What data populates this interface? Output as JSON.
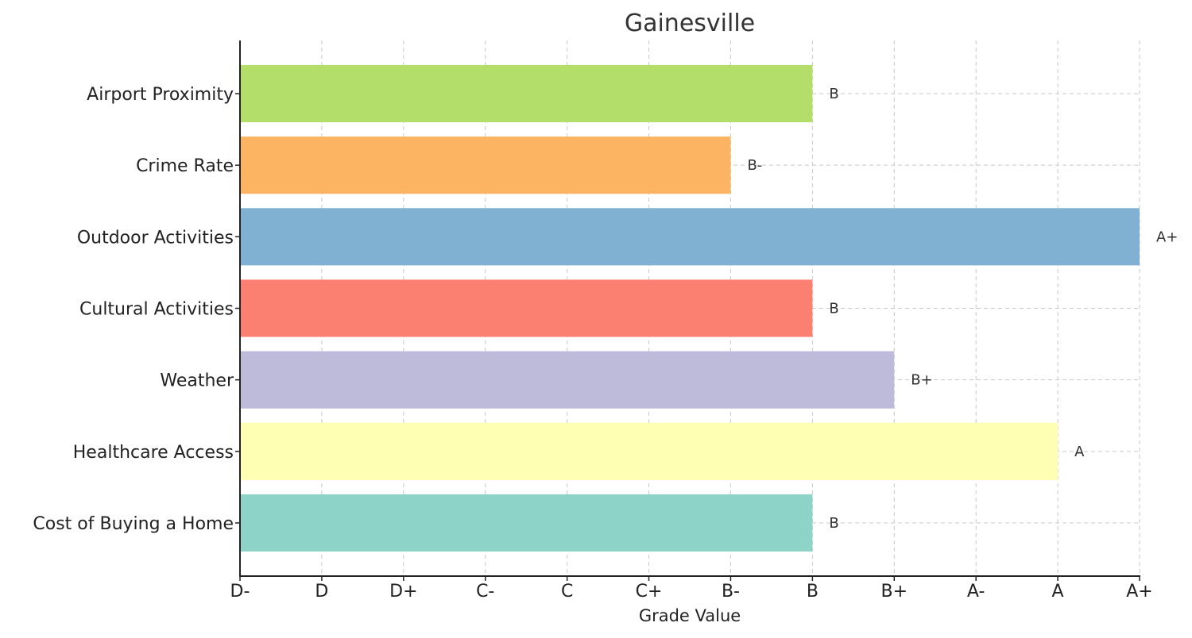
{
  "chart_data": {
    "type": "bar",
    "orientation": "horizontal",
    "title": "Gainesville",
    "xlabel": "Grade Value",
    "ylabel": "",
    "grid": true,
    "x_tick_labels": [
      "D-",
      "D",
      "D+",
      "C-",
      "C",
      "C+",
      "B-",
      "B",
      "B+",
      "A-",
      "A",
      "A+"
    ],
    "xlim": [
      0,
      11
    ],
    "categories": [
      "Cost of Buying a Home",
      "Healthcare Access",
      "Weather",
      "Cultural Activities",
      "Outdoor Activities",
      "Crime Rate",
      "Airport Proximity"
    ],
    "values": [
      7,
      10,
      8,
      7,
      11,
      6,
      7
    ],
    "value_labels": [
      "B",
      "A",
      "B+",
      "B",
      "A+",
      "B-",
      "B"
    ],
    "colors": [
      "#8dd3c7",
      "#ffffb3",
      "#bebada",
      "#fb8072",
      "#80b1d3",
      "#fdb462",
      "#b3de69"
    ]
  }
}
